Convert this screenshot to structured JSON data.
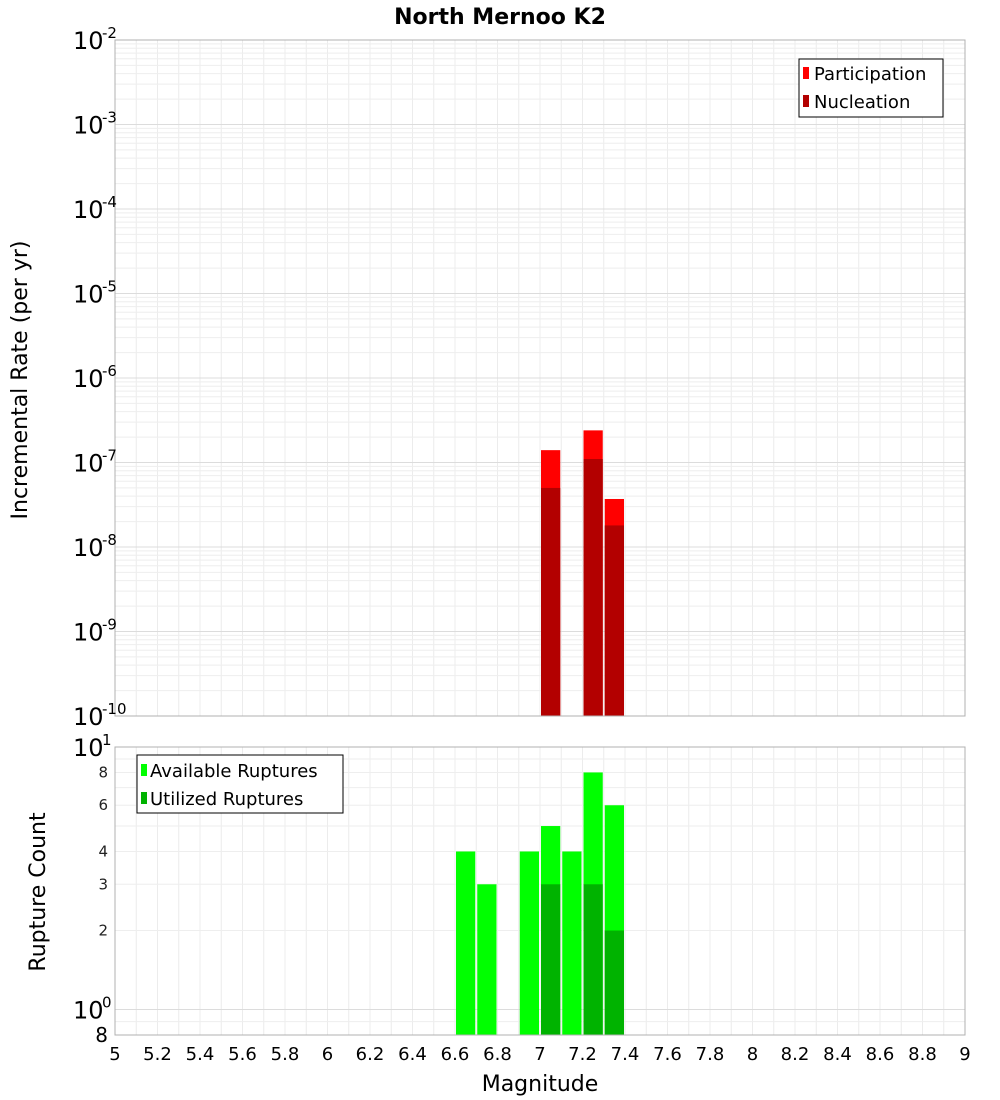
{
  "chart_data": [
    {
      "type": "bar",
      "title": "North Mernoo K2",
      "xlabel": "",
      "ylabel": "Incremental Rate (per yr)",
      "yscale": "log",
      "xlim": [
        5,
        9
      ],
      "ylim": [
        1e-10,
        0.01
      ],
      "ytick_exponents": [
        "-2",
        "-3",
        "-4",
        "-5",
        "-6",
        "-7",
        "-8",
        "-9",
        "-10"
      ],
      "ytick_base": "10",
      "bar_width": 0.1,
      "legend_position": "top-right",
      "series": [
        {
          "name": "Participation",
          "color": "#ff0000",
          "x": [
            7.05,
            7.25,
            7.35
          ],
          "values": [
            1.4e-07,
            2.4e-07,
            3.7e-08
          ]
        },
        {
          "name": "Nucleation",
          "color": "#b30000",
          "x": [
            7.05,
            7.25,
            7.35
          ],
          "values": [
            5e-08,
            1.1e-07,
            1.8e-08
          ]
        }
      ]
    },
    {
      "type": "bar",
      "title": "",
      "xlabel": "Magnitude",
      "ylabel": "Rupture Count",
      "yscale": "log",
      "xlim": [
        5,
        9
      ],
      "ylim": [
        0.8,
        10
      ],
      "yticks": [
        "8",
        "6",
        "4",
        "3",
        "2"
      ],
      "ytick_big": {
        "base": "10",
        "top_exp": "1",
        "bottom_exp": "0",
        "bottom_label": "8"
      },
      "bar_width": 0.1,
      "legend_position": "top-left",
      "xticks": [
        "5",
        "5.2",
        "5.4",
        "5.6",
        "5.8",
        "6",
        "6.2",
        "6.4",
        "6.6",
        "6.8",
        "7",
        "7.2",
        "7.4",
        "7.6",
        "7.8",
        "8",
        "8.2",
        "8.4",
        "8.6",
        "8.8",
        "9"
      ],
      "series": [
        {
          "name": "Available Ruptures",
          "color": "#00ff00",
          "x": [
            6.65,
            6.75,
            6.95,
            7.05,
            7.15,
            7.25,
            7.35
          ],
          "values": [
            4,
            3,
            4,
            5,
            4,
            8,
            6
          ]
        },
        {
          "name": "Utilized Ruptures",
          "color": "#00b300",
          "x": [
            7.05,
            7.25,
            7.35
          ],
          "values": [
            3,
            3,
            2
          ]
        }
      ]
    }
  ]
}
